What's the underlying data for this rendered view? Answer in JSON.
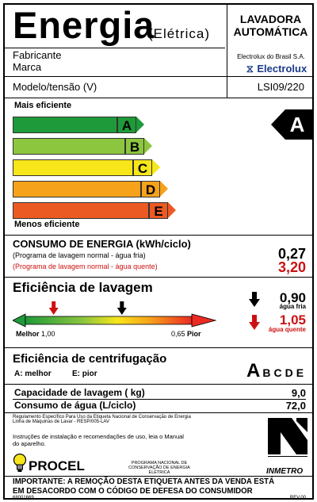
{
  "header": {
    "title": "Energia",
    "subtitle": "(Elétrica)",
    "product_type_line1": "LAVADORA",
    "product_type_line2": "AUTOMÁTICA"
  },
  "manufacturer": {
    "fabricante_label": "Fabricante",
    "marca_label": "Marca",
    "company": "Electrolux do Brasil S.A.",
    "brand": "Electrolux",
    "model_label": "Modelo/tensão (V)",
    "model_value": "LSI09/220"
  },
  "efficiency_scale": {
    "top_label": "Mais eficiente",
    "bottom_label": "Menos eficiente",
    "classes": [
      {
        "letter": "A",
        "color": "#1f9a3a"
      },
      {
        "letter": "B",
        "color": "#8cc63f"
      },
      {
        "letter": "C",
        "color": "#f6e61a"
      },
      {
        "letter": "D",
        "color": "#f7a21b"
      },
      {
        "letter": "E",
        "color": "#ec5a24"
      }
    ],
    "rating": "A"
  },
  "energy_consumption": {
    "title": "CONSUMO DE ENERGIA (kWh/ciclo)",
    "cold_label": "(Programa de lavagem normal - água fria)",
    "hot_label": "(Programa de lavagem normal - água quente)",
    "cold_value": "0,27",
    "hot_value": "3,20"
  },
  "wash_efficiency": {
    "title": "Eficiência de lavagem",
    "better_label": "Melhor",
    "better_value": "1,00",
    "worse_value": "0,65",
    "worse_label": "Pior",
    "cold_value": "0,90",
    "cold_label": "água fria",
    "hot_value": "1,05",
    "hot_label": "água quente",
    "cold_position": 0.58,
    "hot_position": 0.17
  },
  "spin_efficiency": {
    "title": "Eficiência de centrifugação",
    "best_label": "A: melhor",
    "worst_label": "E: pior",
    "classes": [
      "A",
      "B",
      "C",
      "D",
      "E"
    ],
    "rating": "A"
  },
  "capacity": {
    "wash_capacity_label": "Capacidade de lavagem ( kg)",
    "wash_capacity_value": "9,0",
    "water_label": "Consumo de água (L/ciclo)",
    "water_value": "72,0"
  },
  "regulation": {
    "line1": "Regulamento Específico Para Uso da Etiqueta Nacional de Conservação de Energia",
    "line2": "Linha de Máquinas de Lavar - RESP/005-LAV",
    "instructions1": "Instruções de instalação e recomendações de uso, leia o Manual",
    "instructions2": "do aparelho."
  },
  "footer": {
    "procel": "PROCEL",
    "procel_sub1": "PROGRAMA NACIONAL DE",
    "procel_sub2": "CONSERVAÇÃO DE ENERGIA ELÉTRICA",
    "inmetro": "INMETRO",
    "warning1": "IMPORTANTE: A REMOÇÃO DESTA ETIQUETA ANTES DA VENDA ESTÁ",
    "warning2": "EM DESACORDO COM O CÓDIGO DE DEFESA DO CONSUMIDOR",
    "code": "68001669",
    "revision": "REV.00"
  }
}
